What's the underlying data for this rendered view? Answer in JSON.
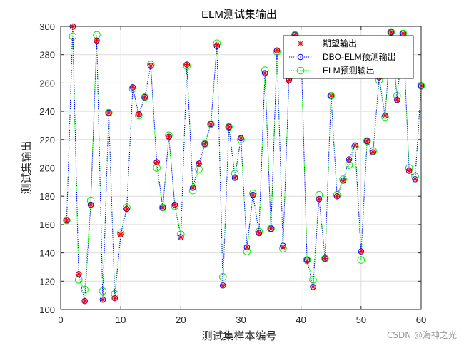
{
  "chart_data": {
    "type": "line",
    "title": "ELM测试集输出",
    "xlabel": "测试集样本编号",
    "ylabel": "测试集输出",
    "xlim": [
      0,
      60
    ],
    "ylim": [
      100,
      300
    ],
    "xticks": [
      0,
      10,
      20,
      30,
      40,
      50,
      60
    ],
    "yticks": [
      100,
      120,
      140,
      160,
      180,
      200,
      220,
      240,
      260,
      280,
      300
    ],
    "grid": true,
    "legend_position": "top-right",
    "x": [
      1,
      2,
      3,
      4,
      5,
      6,
      7,
      8,
      9,
      10,
      11,
      12,
      13,
      14,
      15,
      16,
      17,
      18,
      19,
      20,
      21,
      22,
      23,
      24,
      25,
      26,
      27,
      28,
      29,
      30,
      31,
      32,
      33,
      34,
      35,
      36,
      37,
      38,
      39,
      40,
      41,
      42,
      43,
      44,
      45,
      46,
      47,
      48,
      49,
      50,
      51,
      52,
      53,
      54,
      55,
      56,
      57,
      58,
      59,
      60
    ],
    "series": [
      {
        "name": "期望输出",
        "color": "#ff0000",
        "marker": "asterisk",
        "line": "none",
        "values": [
          163,
          300,
          125,
          106,
          174,
          290,
          107,
          239,
          108,
          153,
          171,
          257,
          238,
          250,
          272,
          204,
          172,
          222,
          174,
          151,
          273,
          186,
          203,
          217,
          231,
          287,
          117,
          229,
          193,
          221,
          144,
          181,
          154,
          267,
          157,
          283,
          144,
          262,
          294,
          288,
          134,
          116,
          178,
          136,
          251,
          180,
          191,
          206,
          216,
          141,
          219,
          211,
          264,
          237,
          296,
          248,
          295,
          198,
          192,
          258
        ]
      },
      {
        "name": "DBO-ELM预测输出",
        "color": "#0000ff",
        "marker": "circle",
        "line": "dotted",
        "values": [
          163,
          300,
          125,
          106,
          174,
          290,
          107,
          239,
          108,
          153,
          171,
          257,
          238,
          250,
          272,
          204,
          172,
          222,
          174,
          151,
          273,
          186,
          203,
          217,
          231,
          286,
          117,
          229,
          193,
          221,
          144,
          181,
          154,
          267,
          157,
          283,
          145,
          262,
          294,
          288,
          135,
          116,
          178,
          136,
          251,
          180,
          191,
          206,
          216,
          141,
          219,
          211,
          264,
          237,
          296,
          248,
          295,
          198,
          192,
          258
        ]
      },
      {
        "name": "ELM预测输出",
        "color": "#00ee00",
        "marker": "circle",
        "line": "dotted",
        "values": [
          163,
          293,
          121,
          114,
          177,
          294,
          113,
          239,
          111,
          154,
          172,
          256,
          237,
          250,
          273,
          200,
          172,
          223,
          173,
          153,
          272,
          184,
          199,
          217,
          231,
          288,
          123,
          229,
          196,
          220,
          141,
          182,
          155,
          269,
          157,
          282,
          143,
          264,
          294,
          284,
          135,
          121,
          181,
          136,
          251,
          181,
          192,
          202,
          215,
          135,
          219,
          212,
          262,
          236,
          296,
          251,
          295,
          200,
          194,
          258
        ]
      }
    ]
  },
  "watermark": "CSDN @海神之光"
}
